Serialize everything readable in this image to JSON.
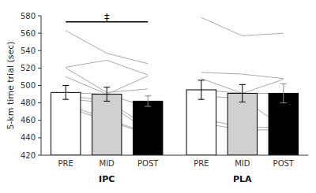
{
  "chart_data": {
    "type": "bar",
    "ylabel": "5-km time trial (sec)",
    "categories": [
      "PRE",
      "MID",
      "POST",
      "PRE",
      "MID",
      "POST"
    ],
    "values": [
      492,
      490,
      482,
      495,
      491,
      491
    ],
    "errors": [
      8,
      8,
      6,
      11,
      10,
      11
    ],
    "colors": [
      "white",
      "#d0d0d0",
      "black",
      "white",
      "#d0d0d0",
      "black"
    ],
    "groups": [
      {
        "name": "IPC",
        "individual": [
          [
            563,
            537,
            525
          ],
          [
            521,
            529,
            512
          ],
          [
            520,
            492,
            496
          ],
          [
            510,
            490,
            511
          ],
          [
            492,
            490,
            475
          ],
          [
            488,
            483,
            452
          ],
          [
            485,
            480,
            448
          ],
          [
            478,
            462,
            445
          ],
          [
            475,
            460,
            444
          ]
        ]
      },
      {
        "name": "PLA",
        "individual": [
          [
            578,
            557,
            560
          ],
          [
            515,
            513,
            508
          ],
          [
            508,
            491,
            507
          ],
          [
            495,
            491,
            491
          ],
          [
            488,
            485,
            452
          ],
          [
            462,
            452,
            452
          ],
          [
            457,
            449,
            449
          ]
        ]
      }
    ],
    "line_color": "#aaaaaa",
    "annotations": [
      {
        "text": "‡",
        "from": 0,
        "to": 2,
        "y": 573
      }
    ],
    "ylim": [
      420,
      580
    ],
    "yticks": [
      420,
      440,
      460,
      480,
      500,
      520,
      540,
      560,
      580
    ],
    "grid": false
  }
}
